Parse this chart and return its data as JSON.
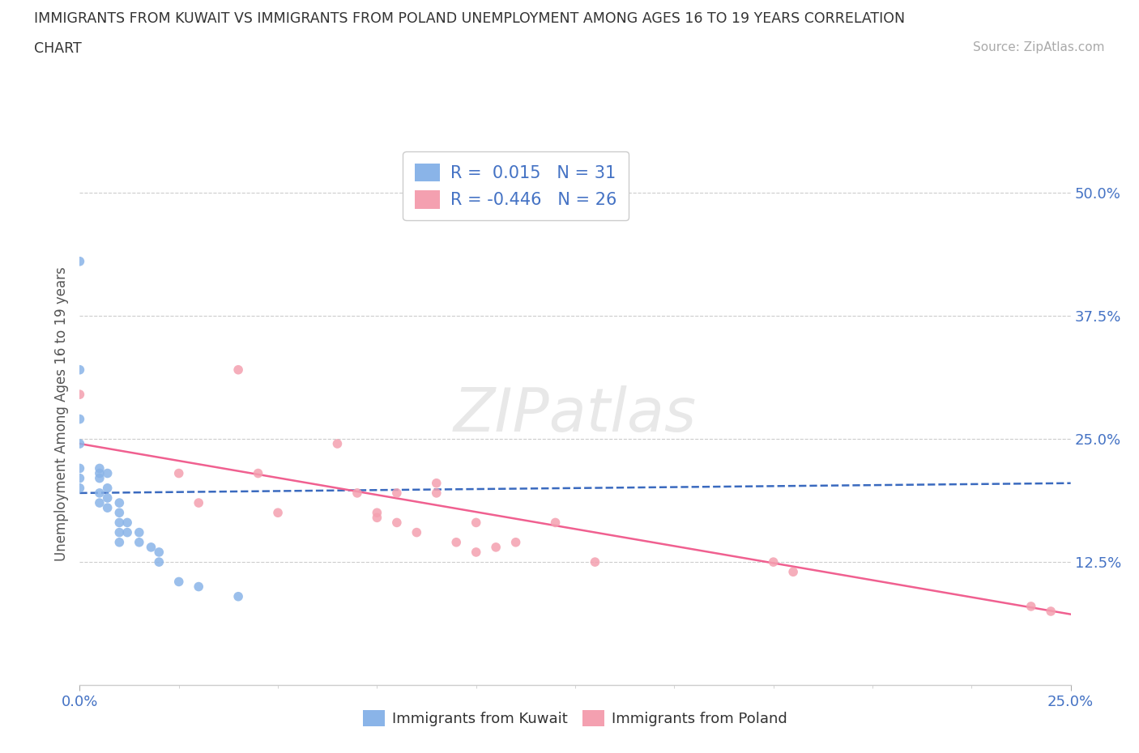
{
  "title_line1": "IMMIGRANTS FROM KUWAIT VS IMMIGRANTS FROM POLAND UNEMPLOYMENT AMONG AGES 16 TO 19 YEARS CORRELATION",
  "title_line2": "CHART",
  "source_text": "Source: ZipAtlas.com",
  "ylabel": "Unemployment Among Ages 16 to 19 years",
  "xlim": [
    0.0,
    0.25
  ],
  "ylim": [
    0.0,
    0.55
  ],
  "ytick_values": [
    0.125,
    0.25,
    0.375,
    0.5
  ],
  "kuwait_color": "#8ab4e8",
  "poland_color": "#f4a0b0",
  "kuwait_line_color": "#3a6abf",
  "poland_line_color": "#f06090",
  "kuwait_R": 0.015,
  "kuwait_N": 31,
  "poland_R": -0.446,
  "poland_N": 26,
  "legend_label_kuwait": "Immigrants from Kuwait",
  "legend_label_poland": "Immigrants from Poland",
  "background_color": "#ffffff",
  "kuwait_scatter_x": [
    0.0,
    0.0,
    0.0,
    0.0,
    0.0,
    0.0,
    0.0,
    0.005,
    0.005,
    0.005,
    0.005,
    0.005,
    0.007,
    0.007,
    0.007,
    0.007,
    0.01,
    0.01,
    0.01,
    0.01,
    0.01,
    0.012,
    0.012,
    0.015,
    0.015,
    0.018,
    0.02,
    0.02,
    0.025,
    0.03,
    0.04
  ],
  "kuwait_scatter_y": [
    0.43,
    0.32,
    0.27,
    0.245,
    0.22,
    0.21,
    0.2,
    0.22,
    0.215,
    0.21,
    0.195,
    0.185,
    0.215,
    0.2,
    0.19,
    0.18,
    0.185,
    0.175,
    0.165,
    0.155,
    0.145,
    0.165,
    0.155,
    0.155,
    0.145,
    0.14,
    0.135,
    0.125,
    0.105,
    0.1,
    0.09
  ],
  "poland_scatter_x": [
    0.0,
    0.025,
    0.03,
    0.04,
    0.045,
    0.05,
    0.065,
    0.07,
    0.075,
    0.075,
    0.08,
    0.08,
    0.085,
    0.09,
    0.09,
    0.095,
    0.1,
    0.1,
    0.105,
    0.11,
    0.12,
    0.13,
    0.175,
    0.18,
    0.24,
    0.245
  ],
  "poland_scatter_y": [
    0.295,
    0.215,
    0.185,
    0.32,
    0.215,
    0.175,
    0.245,
    0.195,
    0.175,
    0.17,
    0.195,
    0.165,
    0.155,
    0.205,
    0.195,
    0.145,
    0.165,
    0.135,
    0.14,
    0.145,
    0.165,
    0.125,
    0.125,
    0.115,
    0.08,
    0.075
  ],
  "kuwait_trendline_x": [
    0.0,
    0.25
  ],
  "kuwait_trendline_y": [
    0.195,
    0.205
  ],
  "poland_trendline_x": [
    0.0,
    0.25
  ],
  "poland_trendline_y": [
    0.245,
    0.072
  ]
}
